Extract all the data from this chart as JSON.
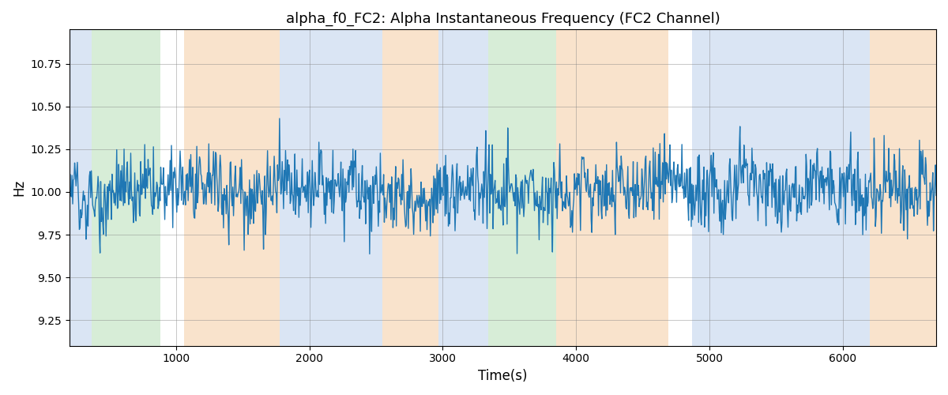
{
  "title": "alpha_f0_FC2: Alpha Instantaneous Frequency (FC2 Channel)",
  "xlabel": "Time(s)",
  "ylabel": "Hz",
  "ylim": [
    9.1,
    10.95
  ],
  "xlim": [
    200,
    6700
  ],
  "line_color": "#1f77b4",
  "line_width": 1.0,
  "seed": 42,
  "n_points": 1300,
  "x_start": 200,
  "x_end": 6700,
  "mean_freq": 10.0,
  "std_freq": 0.18,
  "bands": [
    {
      "xmin": 200,
      "xmax": 370,
      "color": "#aec6e8",
      "alpha": 0.45
    },
    {
      "xmin": 370,
      "xmax": 880,
      "color": "#a8d8a8",
      "alpha": 0.45
    },
    {
      "xmin": 880,
      "xmax": 1060,
      "color": "#ffffff",
      "alpha": 0.0
    },
    {
      "xmin": 1060,
      "xmax": 1780,
      "color": "#f5c89a",
      "alpha": 0.5
    },
    {
      "xmin": 1780,
      "xmax": 2060,
      "color": "#aec6e8",
      "alpha": 0.45
    },
    {
      "xmin": 2060,
      "xmax": 2550,
      "color": "#aec6e8",
      "alpha": 0.45
    },
    {
      "xmin": 2550,
      "xmax": 2750,
      "color": "#f5c89a",
      "alpha": 0.5
    },
    {
      "xmin": 2750,
      "xmax": 2970,
      "color": "#f5c89a",
      "alpha": 0.5
    },
    {
      "xmin": 2970,
      "xmax": 3200,
      "color": "#aec6e8",
      "alpha": 0.45
    },
    {
      "xmin": 3200,
      "xmax": 3340,
      "color": "#aec6e8",
      "alpha": 0.45
    },
    {
      "xmin": 3340,
      "xmax": 3680,
      "color": "#a8d8a8",
      "alpha": 0.45
    },
    {
      "xmin": 3680,
      "xmax": 3850,
      "color": "#a8d8a8",
      "alpha": 0.45
    },
    {
      "xmin": 3850,
      "xmax": 4090,
      "color": "#f5c89a",
      "alpha": 0.5
    },
    {
      "xmin": 4090,
      "xmax": 4690,
      "color": "#f5c89a",
      "alpha": 0.5
    },
    {
      "xmin": 4690,
      "xmax": 4870,
      "color": "#ffffff",
      "alpha": 0.0
    },
    {
      "xmin": 4870,
      "xmax": 6100,
      "color": "#aec6e8",
      "alpha": 0.45
    },
    {
      "xmin": 6100,
      "xmax": 6200,
      "color": "#aec6e8",
      "alpha": 0.45
    },
    {
      "xmin": 6200,
      "xmax": 6700,
      "color": "#f5c89a",
      "alpha": 0.5
    }
  ],
  "title_fontsize": 13,
  "label_fontsize": 12,
  "tick_fontsize": 10
}
